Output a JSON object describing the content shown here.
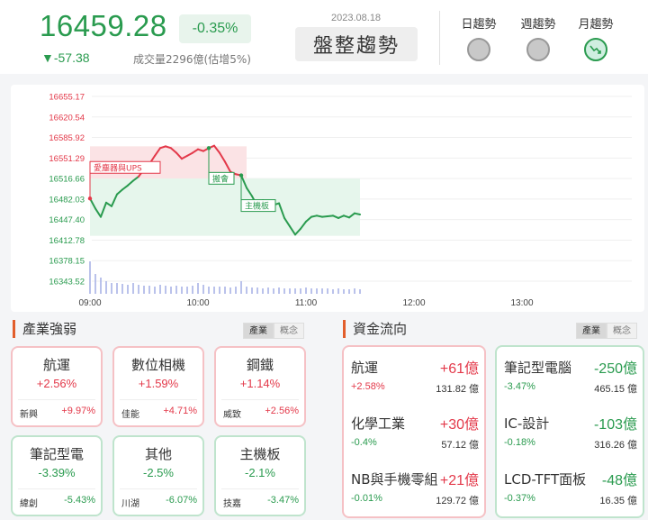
{
  "header": {
    "price": "16459.28",
    "pct": "-0.35%",
    "change": "▼-57.38",
    "volume": "成交量2296億(估增5%)",
    "date": "2023.08.18",
    "trend_label": "盤整趨勢",
    "trends": [
      {
        "label": "日趨勢",
        "state": "neutral"
      },
      {
        "label": "週趨勢",
        "state": "neutral"
      },
      {
        "label": "月趨勢",
        "state": "down"
      }
    ]
  },
  "chart": {
    "y_ticks": [
      "16655.17",
      "16620.54",
      "16585.92",
      "16551.29",
      "16516.66",
      "16482.03",
      "16447.40",
      "16412.78",
      "16378.15",
      "16343.52"
    ],
    "y_ticks_red": 4,
    "x_ticks": [
      "09:00",
      "10:00",
      "11:00",
      "12:00",
      "13:00"
    ],
    "annotations": [
      "愛塵器與UPS",
      "搬會",
      "主機板"
    ],
    "colors": {
      "up": "#e3394a",
      "down": "#2a9b4f",
      "volume": "#a9b4e6"
    }
  },
  "chart_data": {
    "type": "line",
    "title": "",
    "ylim": [
      16343.52,
      16655.17
    ],
    "x_range": [
      "09:00",
      "13:30"
    ],
    "reference": 16516.66,
    "x": [
      "09:00",
      "09:03",
      "09:06",
      "09:09",
      "09:12",
      "09:15",
      "09:18",
      "09:21",
      "09:24",
      "09:27",
      "09:30",
      "09:33",
      "09:36",
      "09:39",
      "09:42",
      "09:45",
      "09:48",
      "09:51",
      "09:54",
      "09:57",
      "10:00",
      "10:03",
      "10:06",
      "10:09",
      "10:12",
      "10:15",
      "10:18",
      "10:21",
      "10:24",
      "10:27",
      "10:30",
      "10:33",
      "10:36",
      "10:39",
      "10:42",
      "10:45",
      "10:48",
      "10:51",
      "10:54",
      "10:57",
      "11:00",
      "11:03",
      "11:06",
      "11:09",
      "11:12",
      "11:15",
      "11:18",
      "11:21",
      "11:24",
      "11:27",
      "11:30"
    ],
    "y": [
      16483,
      16466,
      16452,
      16476,
      16470,
      16490,
      16498,
      16505,
      16513,
      16520,
      16532,
      16541,
      16555,
      16568,
      16571,
      16568,
      16560,
      16550,
      16555,
      16560,
      16566,
      16563,
      16568,
      16572,
      16560,
      16545,
      16528,
      16524,
      16522,
      16501,
      16487,
      16470,
      16480,
      16478,
      16472,
      16475,
      16450,
      16436,
      16422,
      16432,
      16444,
      16452,
      16454,
      16452,
      16453,
      16454,
      16450,
      16454,
      16451,
      16458,
      16456
    ],
    "volume": [
      36,
      22,
      18,
      14,
      12,
      12,
      11,
      10,
      12,
      10,
      9,
      9,
      8,
      10,
      9,
      8,
      9,
      8,
      8,
      9,
      12,
      10,
      8,
      8,
      8,
      8,
      7,
      8,
      14,
      8,
      7,
      7,
      6,
      7,
      6,
      7,
      6,
      6,
      6,
      6,
      7,
      6,
      6,
      6,
      6,
      5,
      6,
      5,
      5,
      6,
      5
    ]
  },
  "industry": {
    "title": "產業強弱",
    "tabs": [
      "產業",
      "概念"
    ],
    "cards": [
      {
        "name": "航運",
        "pct": "+2.56%",
        "sub": "新興",
        "sub_val": "+9.97%",
        "dir": "up"
      },
      {
        "name": "數位相機",
        "pct": "+1.59%",
        "sub": "佳能",
        "sub_val": "+4.71%",
        "dir": "up"
      },
      {
        "name": "鋼鐵",
        "pct": "+1.14%",
        "sub": "威致",
        "sub_val": "+2.56%",
        "dir": "up"
      },
      {
        "name": "筆記型電",
        "pct": "-3.39%",
        "sub": "緯創",
        "sub_val": "-5.43%",
        "dir": "dn"
      },
      {
        "name": "其他",
        "pct": "-2.5%",
        "sub": "川湖",
        "sub_val": "-6.07%",
        "dir": "dn"
      },
      {
        "name": "主機板",
        "pct": "-2.1%",
        "sub": "技嘉",
        "sub_val": "-3.47%",
        "dir": "dn"
      }
    ]
  },
  "flow": {
    "title": "資金流向",
    "tabs": [
      "產業",
      "概念"
    ],
    "inflow": [
      {
        "name": "航運",
        "amount": "+61億",
        "pct": "+2.58%",
        "total": "131.82 億"
      },
      {
        "name": "化學工業",
        "amount": "+30億",
        "pct": "-0.4%",
        "total": "57.12 億"
      },
      {
        "name": "NB與手機零組件",
        "amount": "+21億",
        "pct": "-0.01%",
        "total": "129.72 億"
      }
    ],
    "outflow": [
      {
        "name": "筆記型電腦",
        "amount": "-250億",
        "pct": "-3.47%",
        "total": "465.15 億"
      },
      {
        "name": "IC-設計",
        "amount": "-103億",
        "pct": "-0.18%",
        "total": "316.26 億"
      },
      {
        "name": "LCD-TFT面板",
        "amount": "-48億",
        "pct": "-0.37%",
        "total": "16.35 億"
      }
    ]
  }
}
